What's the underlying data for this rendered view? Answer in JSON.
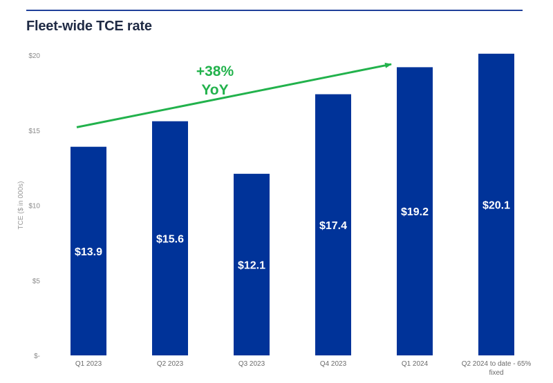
{
  "header": {
    "title": "Fleet-wide TCE rate"
  },
  "chart_data": {
    "type": "bar",
    "title": "Fleet-wide TCE rate",
    "ylabel": "TCE ($ in 000s)",
    "xlabel": "",
    "categories": [
      "Q1 2023",
      "Q2 2023",
      "Q3 2023",
      "Q4 2023",
      "Q1 2024",
      "Q2 2024 to date - 65% fixed"
    ],
    "values": [
      13.9,
      15.6,
      12.1,
      17.4,
      19.2,
      20.1
    ],
    "data_labels": [
      "$13.9",
      "$15.6",
      "$12.1",
      "$17.4",
      "$19.2",
      "$20.1"
    ],
    "ylim": [
      0,
      20
    ],
    "yticks": [
      0,
      5,
      10,
      15,
      20
    ],
    "ytick_labels": [
      "$-",
      "$5",
      "$10",
      "$15",
      "$20"
    ],
    "grid": false,
    "bar_color": "#003399",
    "annotation": {
      "lines": [
        "+38%",
        "YoY"
      ],
      "color": "#22b24c",
      "arrow_from": [
        0,
        15.2
      ],
      "arrow_to": [
        4,
        19.4
      ]
    }
  }
}
